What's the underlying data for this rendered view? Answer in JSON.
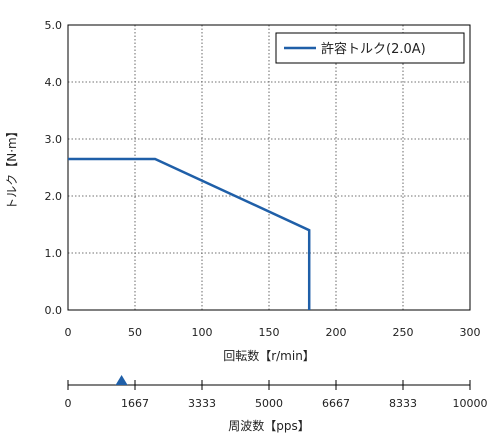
{
  "chart_data": [
    {
      "type": "line",
      "xlabel": "回転数【r/min】",
      "ylabel": "トルク【N·m】",
      "xlim": [
        0,
        300
      ],
      "ylim": [
        0,
        5
      ],
      "x_ticks": [
        0,
        50,
        100,
        150,
        200,
        250,
        300
      ],
      "y_ticks": [
        0.0,
        1.0,
        2.0,
        3.0,
        4.0,
        5.0
      ],
      "x_tick_labels": [
        "0",
        "50",
        "100",
        "150",
        "200",
        "250",
        "300"
      ],
      "y_tick_labels": [
        "0.0",
        "1.0",
        "2.0",
        "3.0",
        "4.0",
        "5.0"
      ],
      "grid": true,
      "legend_position": "top-right",
      "series": [
        {
          "name": "許容トルク(2.0A)",
          "color": "#1f5fa8",
          "x": [
            0,
            65,
            180,
            180
          ],
          "y": [
            2.65,
            2.65,
            1.4,
            0
          ]
        }
      ]
    },
    {
      "type": "axis",
      "xlabel": "周波数【pps】",
      "xlim": [
        0,
        10000
      ],
      "ticks": [
        0,
        1667,
        3333,
        5000,
        6667,
        8333,
        10000
      ],
      "tick_labels": [
        "0",
        "1667",
        "3333",
        "5000",
        "6667",
        "8333",
        "10000"
      ],
      "marker": {
        "x": 1333,
        "color": "#1f5fa8"
      }
    }
  ]
}
